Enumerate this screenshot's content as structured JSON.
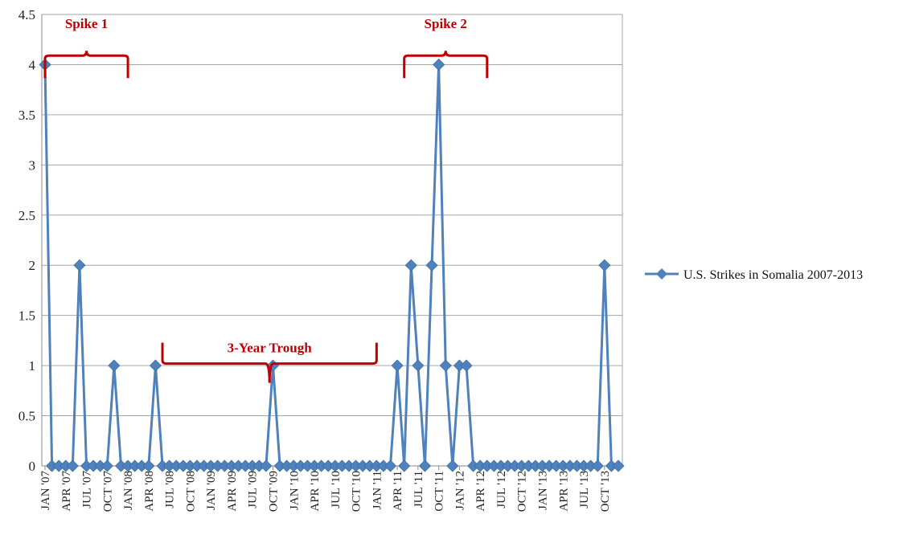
{
  "chart_data": {
    "type": "line",
    "title": "",
    "xlabel": "",
    "ylabel": "",
    "ylim": [
      0,
      4.5
    ],
    "yticks": [
      0,
      0.5,
      1,
      1.5,
      2,
      2.5,
      3,
      3.5,
      4,
      4.5
    ],
    "ytick_labels": [
      "0",
      "0.5",
      "1",
      "1.5",
      "2",
      "2.5",
      "3",
      "3.5",
      "4",
      "4.5"
    ],
    "grid": "horizontal",
    "legend_position": "right",
    "color": "#4f81bd",
    "annotation_color": "#c00000",
    "x_tick_labels": [
      "JAN '07",
      "APR '07",
      "JUL '07",
      "OCT '07",
      "JAN '08",
      "APR '08",
      "JUL '08",
      "OCT '08",
      "JAN '09",
      "APR '09",
      "JUL '09",
      "OCT '09",
      "JAN '10",
      "APR '10",
      "JUL '10",
      "OCT '10",
      "JAN '11",
      "APR '11",
      "JUL '11",
      "OCT '11",
      "JAN '12",
      "APR '12",
      "JUL '12",
      "OCT '12",
      "JAN '13",
      "APR '13",
      "JUL '13",
      "OCT '13"
    ],
    "series": [
      {
        "name": "U.S. Strikes in Somalia 2007-2013",
        "values": [
          4,
          0,
          0,
          0,
          0,
          2,
          0,
          0,
          0,
          0,
          1,
          0,
          0,
          0,
          0,
          0,
          1,
          0,
          0,
          0,
          0,
          0,
          0,
          0,
          0,
          0,
          0,
          0,
          0,
          0,
          0,
          0,
          0,
          1,
          0,
          0,
          0,
          0,
          0,
          0,
          0,
          0,
          0,
          0,
          0,
          0,
          0,
          0,
          0,
          0,
          0,
          1,
          0,
          2,
          1,
          0,
          2,
          4,
          1,
          0,
          1,
          1,
          0,
          0,
          0,
          0,
          0,
          0,
          0,
          0,
          0,
          0,
          0,
          0,
          0,
          0,
          0,
          0,
          0,
          0,
          0,
          2,
          0,
          0
        ]
      }
    ],
    "annotations": [
      {
        "label": "Spike 1"
      },
      {
        "label": "3-Year Trough"
      },
      {
        "label": "Spike 2"
      }
    ]
  }
}
